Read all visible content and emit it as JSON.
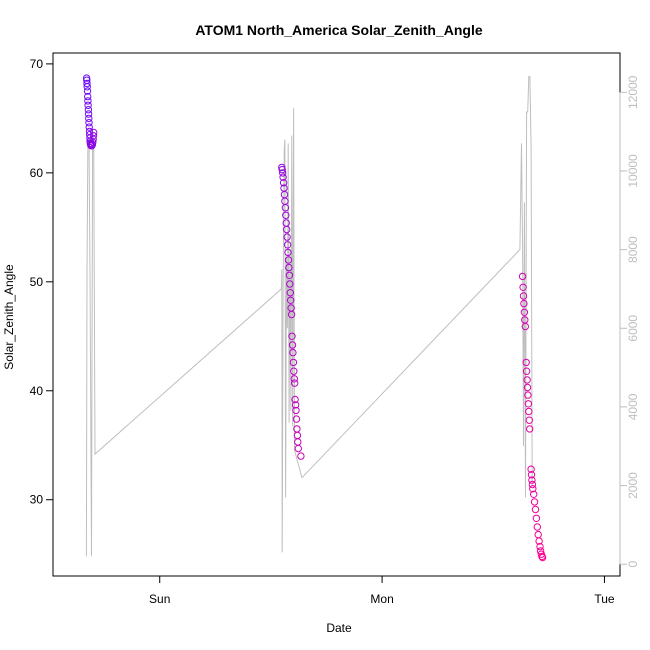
{
  "chart_data": {
    "type": "scatter",
    "title": "ATOM1 North_America Solar_Zenith_Angle",
    "xlabel": "Date",
    "ylabel": "Solar_Zenith_Angle",
    "x_ticks": [
      "Sun",
      "Mon",
      "Tue"
    ],
    "y_ticks": [
      30,
      40,
      50,
      60,
      70
    ],
    "y_right_ticks": [
      0,
      2000,
      4000,
      6000,
      8000,
      10000,
      12000
    ],
    "ylim": [
      23,
      71
    ],
    "y_right_lim": [
      -300,
      13000
    ],
    "xlim_days": [
      -0.48,
      2.07
    ],
    "point_color_start": "#6a0dff",
    "point_color_end": "#ff0090",
    "series": [
      {
        "points": [
          [
            -0.329,
            68.7
          ],
          [
            -0.328,
            68.5
          ],
          [
            -0.327,
            68.2
          ],
          [
            -0.326,
            67.9
          ],
          [
            -0.325,
            67.5
          ],
          [
            -0.324,
            67.0
          ],
          [
            -0.323,
            66.6
          ],
          [
            -0.322,
            66.2
          ],
          [
            -0.321,
            65.8
          ],
          [
            -0.32,
            65.4
          ],
          [
            -0.319,
            65.0
          ],
          [
            -0.318,
            64.6
          ],
          [
            -0.317,
            64.2
          ],
          [
            -0.316,
            63.8
          ],
          [
            -0.315,
            63.5
          ],
          [
            -0.314,
            63.2
          ],
          [
            -0.313,
            62.9
          ],
          [
            -0.312,
            62.7
          ],
          [
            -0.311,
            62.6
          ],
          [
            -0.309,
            62.5
          ],
          [
            -0.307,
            62.5
          ],
          [
            -0.305,
            62.5
          ],
          [
            -0.303,
            62.6
          ],
          [
            -0.301,
            62.8
          ],
          [
            -0.299,
            63.1
          ],
          [
            -0.298,
            63.4
          ],
          [
            -0.297,
            63.7
          ],
          [
            0.549,
            60.5
          ],
          [
            0.551,
            60.3
          ],
          [
            0.553,
            60.0
          ],
          [
            0.555,
            59.6
          ],
          [
            0.557,
            59.1
          ],
          [
            0.559,
            58.6
          ],
          [
            0.561,
            58.0
          ],
          [
            0.563,
            57.4
          ],
          [
            0.565,
            56.8
          ],
          [
            0.567,
            56.1
          ],
          [
            0.569,
            55.4
          ],
          [
            0.571,
            54.8
          ],
          [
            0.573,
            54.1
          ],
          [
            0.575,
            53.4
          ],
          [
            0.577,
            52.7
          ],
          [
            0.579,
            52.0
          ],
          [
            0.581,
            51.3
          ],
          [
            0.583,
            50.6
          ],
          [
            0.585,
            49.8
          ],
          [
            0.587,
            49.0
          ],
          [
            0.589,
            48.3
          ],
          [
            0.591,
            47.6
          ],
          [
            0.593,
            47.0
          ],
          [
            0.595,
            45.0
          ],
          [
            0.597,
            44.2
          ],
          [
            0.599,
            43.5
          ],
          [
            0.601,
            42.6
          ],
          [
            0.603,
            41.8
          ],
          [
            0.605,
            41.1
          ],
          [
            0.607,
            40.7
          ],
          [
            0.609,
            39.2
          ],
          [
            0.611,
            38.7
          ],
          [
            0.613,
            38.2
          ],
          [
            0.615,
            37.4
          ],
          [
            0.617,
            36.5
          ],
          [
            0.619,
            35.9
          ],
          [
            0.621,
            35.3
          ],
          [
            0.623,
            34.7
          ],
          [
            0.635,
            34.0
          ],
          [
            1.632,
            50.5
          ],
          [
            1.634,
            49.5
          ],
          [
            1.636,
            48.7
          ],
          [
            1.638,
            48.0
          ],
          [
            1.64,
            47.2
          ],
          [
            1.642,
            46.5
          ],
          [
            1.644,
            45.9
          ],
          [
            1.648,
            42.6
          ],
          [
            1.65,
            41.8
          ],
          [
            1.652,
            41.0
          ],
          [
            1.654,
            40.3
          ],
          [
            1.656,
            39.6
          ],
          [
            1.658,
            38.8
          ],
          [
            1.66,
            38.1
          ],
          [
            1.662,
            37.3
          ],
          [
            1.664,
            36.5
          ],
          [
            1.67,
            32.8
          ],
          [
            1.672,
            32.3
          ],
          [
            1.674,
            31.8
          ],
          [
            1.676,
            31.4
          ],
          [
            1.678,
            31.0
          ],
          [
            1.682,
            30.5
          ],
          [
            1.686,
            29.8
          ],
          [
            1.69,
            29.1
          ],
          [
            1.694,
            28.3
          ],
          [
            1.698,
            27.5
          ],
          [
            1.702,
            26.8
          ],
          [
            1.706,
            26.2
          ],
          [
            1.71,
            25.7
          ],
          [
            1.713,
            25.3
          ],
          [
            1.716,
            25.0
          ],
          [
            1.719,
            24.8
          ],
          [
            1.722,
            24.7
          ]
        ]
      },
      {
        "axis": "right",
        "color": "#bebebe",
        "line": [
          [
            -0.33,
            200
          ],
          [
            -0.327,
            7400
          ],
          [
            -0.323,
            10800
          ],
          [
            -0.318,
            10800
          ],
          [
            -0.313,
            7000
          ],
          [
            -0.307,
            200
          ],
          [
            -0.302,
            10800
          ],
          [
            -0.297,
            10800
          ],
          [
            -0.291,
            2800
          ],
          [
            0.547,
            7000
          ],
          [
            0.549,
            7500
          ],
          [
            0.551,
            300
          ],
          [
            0.555,
            7000
          ],
          [
            0.56,
            10500
          ],
          [
            0.563,
            10800
          ],
          [
            0.566,
            1700
          ],
          [
            0.57,
            7800
          ],
          [
            0.574,
            6000
          ],
          [
            0.578,
            10700
          ],
          [
            0.582,
            3600
          ],
          [
            0.586,
            8000
          ],
          [
            0.59,
            3900
          ],
          [
            0.594,
            10900
          ],
          [
            0.598,
            3500
          ],
          [
            0.602,
            11600
          ],
          [
            0.606,
            2900
          ],
          [
            0.64,
            2200
          ],
          [
            1.62,
            8000
          ],
          [
            1.627,
            10700
          ],
          [
            1.632,
            8000
          ],
          [
            1.636,
            3000
          ],
          [
            1.64,
            9200
          ],
          [
            1.645,
            1700
          ],
          [
            1.65,
            11500
          ],
          [
            1.655,
            11500
          ],
          [
            1.66,
            12400
          ],
          [
            1.665,
            12400
          ],
          [
            1.67,
            10600
          ],
          [
            1.675,
            2000
          ]
        ]
      }
    ]
  }
}
